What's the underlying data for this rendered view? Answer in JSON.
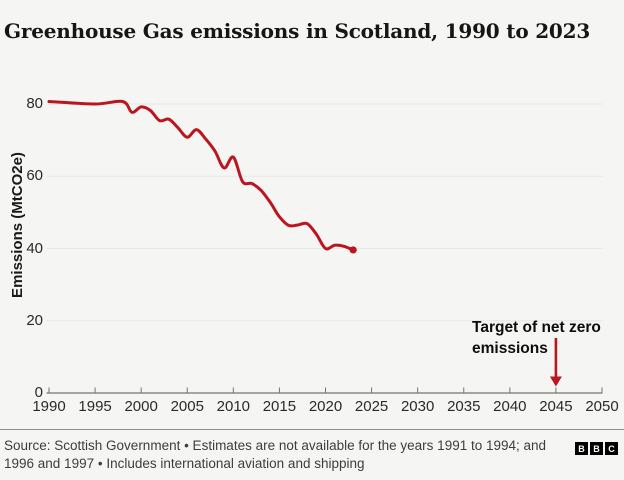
{
  "header": {
    "title": "Greenhouse Gas emissions in Scotland, 1990 to 2023"
  },
  "chart_data": {
    "type": "line",
    "title": "Greenhouse Gas emissions in Scotland, 1990 to 2023",
    "xlabel": "",
    "ylabel": "Emissions (MtCO2e)",
    "xlim": [
      1990,
      2050
    ],
    "ylim": [
      0,
      84
    ],
    "x_ticks": [
      1990,
      1995,
      2000,
      2005,
      2010,
      2015,
      2020,
      2025,
      2030,
      2035,
      2040,
      2045,
      2050
    ],
    "y_ticks": [
      0,
      20,
      40,
      60,
      80
    ],
    "grid": "horizontal",
    "legend": "none",
    "line_color": "#bb161f",
    "background_color": "#f5f5f3",
    "gridline_color": "#e8e8e6",
    "axis_color": "#737373",
    "series": [
      {
        "name": "emissions",
        "units": "MtCO2e",
        "points": [
          [
            1990,
            80.7
          ],
          [
            1995,
            80.0
          ],
          [
            1998,
            80.7
          ],
          [
            1999,
            77.7
          ],
          [
            2000,
            79.2
          ],
          [
            2001,
            78.2
          ],
          [
            2002,
            75.4
          ],
          [
            2003,
            75.8
          ],
          [
            2004,
            73.4
          ],
          [
            2005,
            70.8
          ],
          [
            2006,
            72.9
          ],
          [
            2007,
            70.3
          ],
          [
            2008,
            67.0
          ],
          [
            2009,
            62.3
          ],
          [
            2010,
            65.3
          ],
          [
            2011,
            58.5
          ],
          [
            2012,
            58.0
          ],
          [
            2013,
            56.1
          ],
          [
            2014,
            52.8
          ],
          [
            2015,
            48.8
          ],
          [
            2016,
            46.4
          ],
          [
            2017,
            46.5
          ],
          [
            2018,
            46.9
          ],
          [
            2019,
            44.0
          ],
          [
            2020,
            40.0
          ],
          [
            2021,
            40.9
          ],
          [
            2022,
            40.6
          ],
          [
            2023,
            39.6
          ]
        ]
      }
    ],
    "data_gaps": [
      [
        1991,
        1994
      ],
      [
        1996,
        1997
      ]
    ],
    "end_marker": {
      "x": 2023,
      "y": 39.6
    },
    "annotation": {
      "line1": "Target of net zero",
      "line2": "emissions",
      "arrow_x": 2045,
      "arrow_color": "#bb161f"
    }
  },
  "footer": {
    "source_line1": "Source: Scottish Government • Estimates are not available for the years 1991 to 1994; and",
    "source_line2": "1996 and 1997 • Includes international aviation and shipping",
    "logo": [
      "B",
      "B",
      "C"
    ]
  }
}
